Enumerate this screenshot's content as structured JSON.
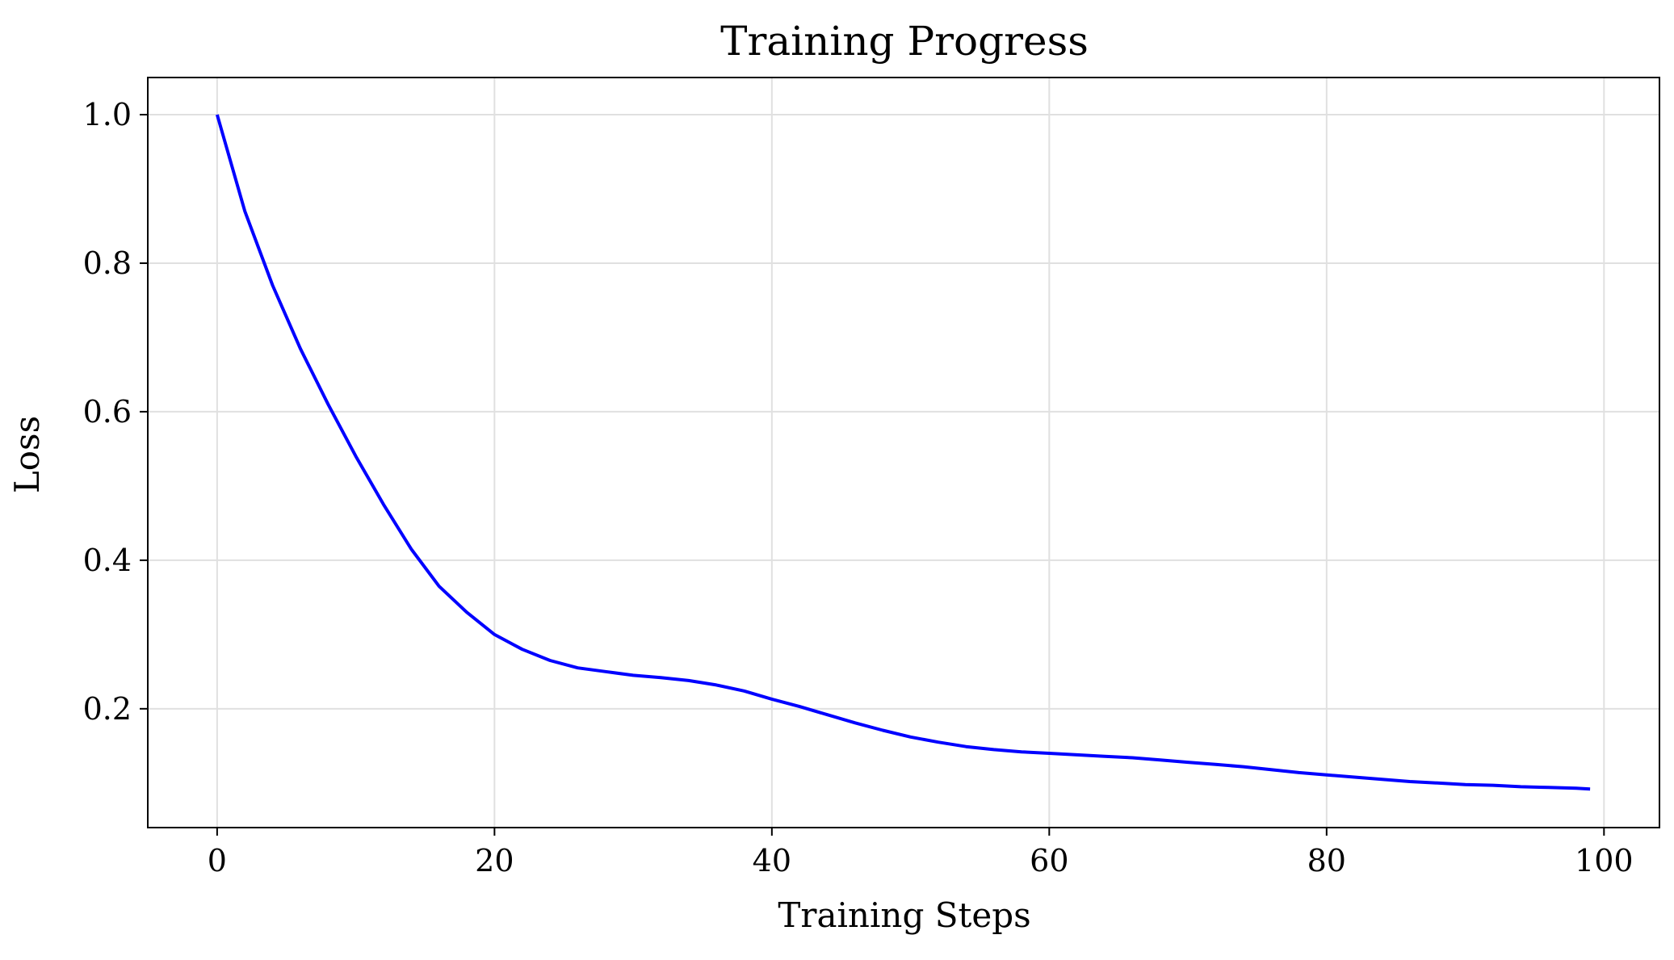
{
  "chart_data": {
    "type": "line",
    "title": "Training Progress",
    "xlabel": "Training Steps",
    "ylabel": "Loss",
    "xlim": [
      -5,
      104
    ],
    "ylim": [
      0.04,
      1.05
    ],
    "x_ticks": [
      0,
      20,
      40,
      60,
      80,
      100
    ],
    "y_ticks": [
      0.2,
      0.4,
      0.6,
      0.8,
      1.0
    ],
    "x_tick_labels": [
      "0",
      "20",
      "40",
      "60",
      "80",
      "100"
    ],
    "y_tick_labels": [
      "0.2",
      "0.4",
      "0.6",
      "0.8",
      "1.0"
    ],
    "grid": true,
    "legend": "none",
    "colors": {
      "line": "#0000ff",
      "grid": "#e0e0e0",
      "axes": "#000000"
    },
    "series": [
      {
        "x": [
          0,
          2,
          4,
          6,
          8,
          10,
          12,
          14,
          16,
          18,
          20,
          22,
          24,
          26,
          28,
          30,
          32,
          34,
          36,
          38,
          40,
          42,
          44,
          46,
          48,
          50,
          52,
          54,
          56,
          58,
          60,
          62,
          64,
          66,
          68,
          70,
          72,
          74,
          76,
          78,
          80,
          82,
          84,
          86,
          88,
          90,
          92,
          94,
          96,
          98,
          99
        ],
        "y": [
          1.0,
          0.87,
          0.77,
          0.685,
          0.61,
          0.54,
          0.475,
          0.415,
          0.365,
          0.33,
          0.3,
          0.28,
          0.265,
          0.255,
          0.25,
          0.245,
          0.242,
          0.238,
          0.232,
          0.224,
          0.213,
          0.203,
          0.192,
          0.181,
          0.171,
          0.162,
          0.155,
          0.149,
          0.145,
          0.142,
          0.14,
          0.138,
          0.136,
          0.134,
          0.131,
          0.128,
          0.125,
          0.122,
          0.118,
          0.114,
          0.111,
          0.108,
          0.105,
          0.102,
          0.1,
          0.098,
          0.097,
          0.095,
          0.094,
          0.093,
          0.092
        ]
      }
    ]
  }
}
